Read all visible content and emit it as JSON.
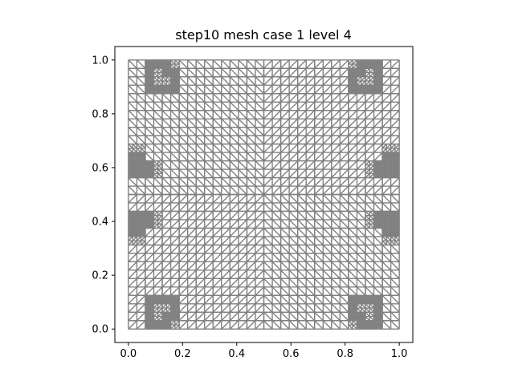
{
  "figure": {
    "title": "step10 mesh case 1 level 4"
  },
  "chart_data": {
    "type": "mesh",
    "title": "step10 mesh case 1 level 4",
    "xlabel": "",
    "ylabel": "",
    "xlim": [
      -0.05,
      1.05
    ],
    "ylim": [
      -0.05,
      1.05
    ],
    "x_ticks": [
      0.0,
      0.2,
      0.4,
      0.6,
      0.8,
      1.0
    ],
    "y_ticks": [
      0.0,
      0.2,
      0.4,
      0.6,
      0.8,
      1.0
    ],
    "x_tick_labels": [
      "0.0",
      "0.2",
      "0.4",
      "0.6",
      "0.8",
      "1.0"
    ],
    "y_tick_labels": [
      "0.0",
      "0.2",
      "0.4",
      "0.6",
      "0.8",
      "1.0"
    ],
    "domain": [
      [
        0,
        0
      ],
      [
        1,
        0
      ],
      [
        1,
        1
      ],
      [
        0,
        1
      ]
    ],
    "coarse_grid_divisions": 16,
    "refinement_circles": [
      {
        "cx": 0.12,
        "cy": 0.07,
        "r": 0.05
      },
      {
        "cx": 0.88,
        "cy": 0.07,
        "r": 0.05
      },
      {
        "cx": 0.12,
        "cy": 0.93,
        "r": 0.05
      },
      {
        "cx": 0.88,
        "cy": 0.93,
        "r": 0.05
      },
      {
        "cx": 0.03,
        "cy": 0.6,
        "r": 0.035
      },
      {
        "cx": 0.97,
        "cy": 0.6,
        "r": 0.035
      },
      {
        "cx": 0.03,
        "cy": 0.4,
        "r": 0.035
      },
      {
        "cx": 0.97,
        "cy": 0.4,
        "r": 0.035
      }
    ],
    "grid": false,
    "legend": "none",
    "edge_color": "#808080",
    "axis_color": "#000000"
  }
}
